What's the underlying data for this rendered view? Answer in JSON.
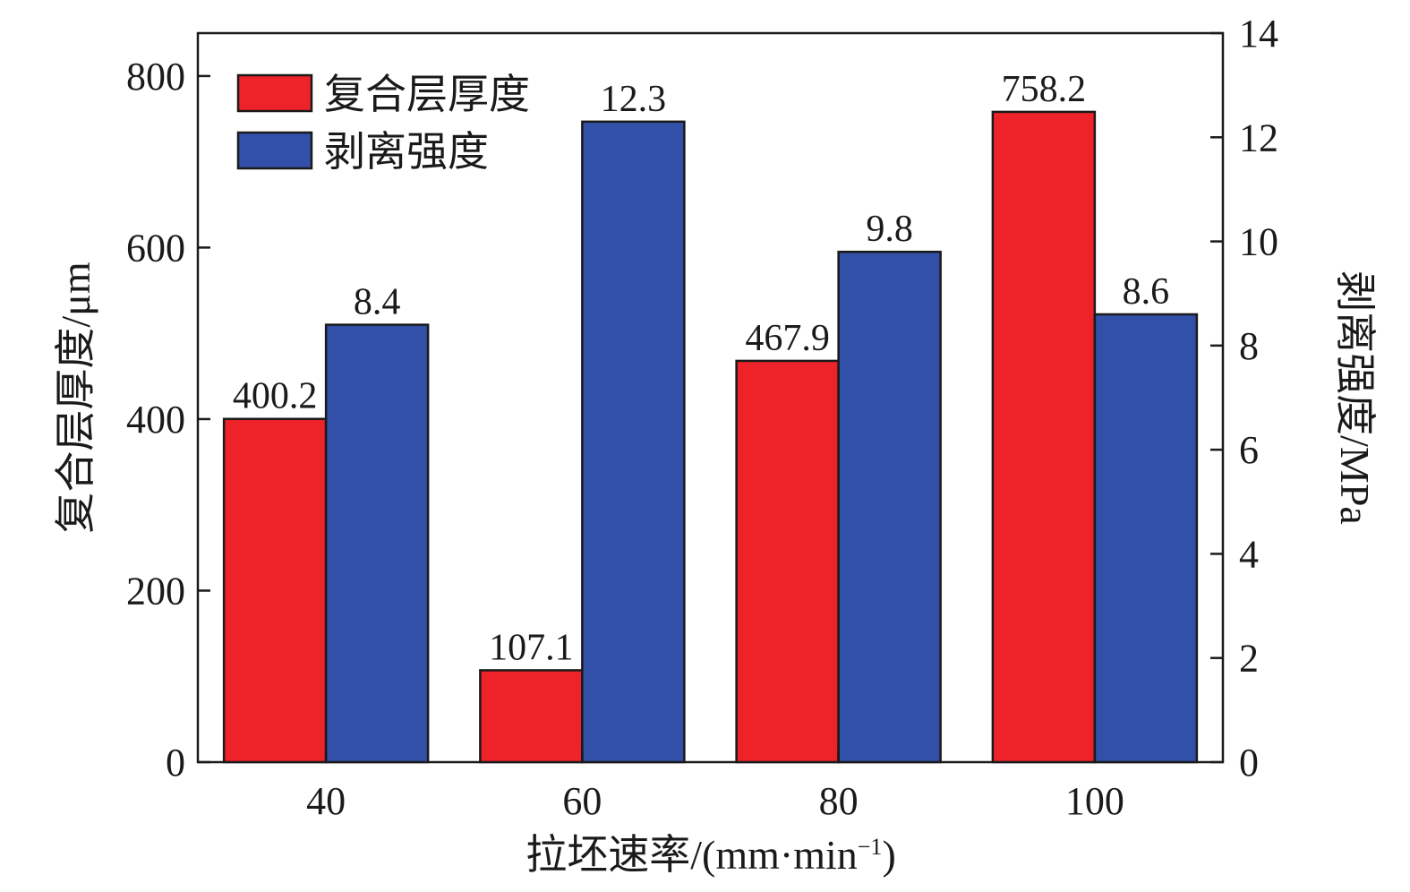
{
  "chart_data": {
    "type": "bar",
    "categories": [
      "40",
      "60",
      "80",
      "100"
    ],
    "xlabel": "拉坯速率/(mm·min",
    "xlabel_sup": "−1",
    "xlabel_close": ")",
    "ylabel": "复合层厚度/μm",
    "y2label": "剥离强度/MPa",
    "ylim": [
      0,
      850
    ],
    "y2lim": [
      0,
      14
    ],
    "yticks": [
      "0",
      "200",
      "400",
      "600",
      "800"
    ],
    "y2ticks": [
      "0",
      "2",
      "4",
      "6",
      "8",
      "10",
      "12",
      "14"
    ],
    "legend_position": "top-left",
    "series": [
      {
        "name": "复合层厚度",
        "axis": "left",
        "color": "#ee2229",
        "values": [
          400.2,
          107.1,
          467.9,
          758.2
        ],
        "labels": [
          "400.2",
          "107.1",
          "467.9",
          "758.2"
        ]
      },
      {
        "name": "剥离强度",
        "axis": "right",
        "color": "#3350a9",
        "values": [
          8.4,
          12.3,
          9.8,
          8.6
        ],
        "labels": [
          "8.4",
          "12.3",
          "9.8",
          "8.6"
        ]
      }
    ]
  }
}
